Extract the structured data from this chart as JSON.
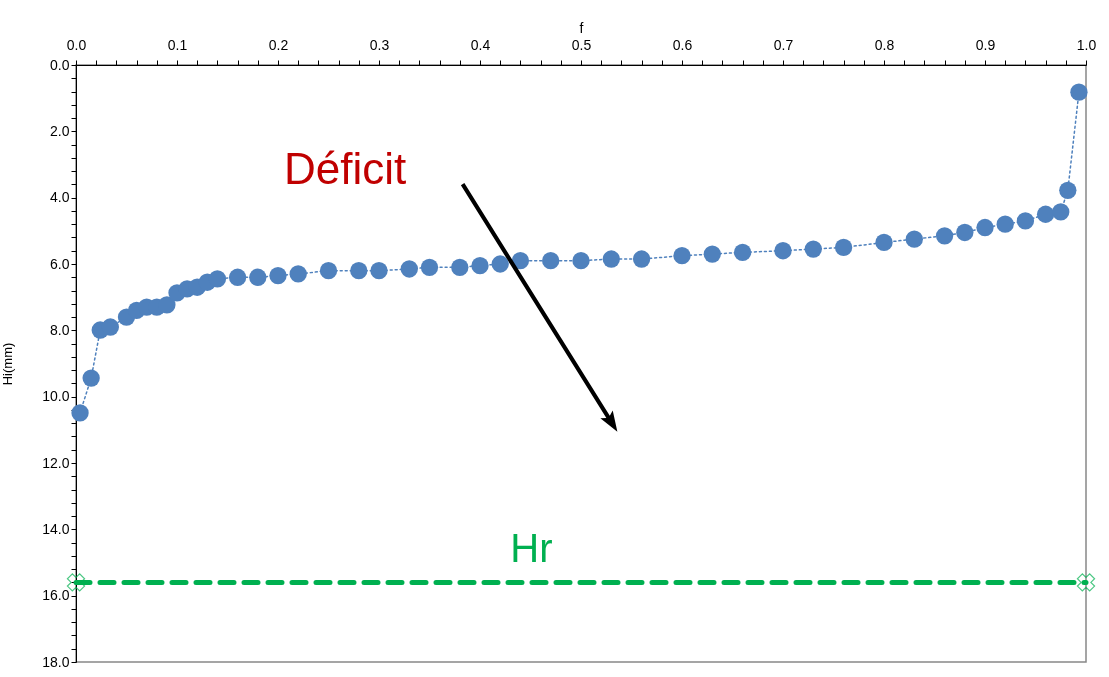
{
  "chart_data": {
    "type": "line",
    "xlabel": "f",
    "ylabel": "Hi(mm)",
    "xlim": [
      0,
      1
    ],
    "ylim": [
      18,
      0
    ],
    "xticks": [
      {
        "value": 0,
        "label": "0.0"
      },
      {
        "value": 0.02,
        "label": null
      },
      {
        "value": 0.04,
        "label": null
      },
      {
        "value": 0.06,
        "label": null
      },
      {
        "value": 0.08,
        "label": null
      },
      {
        "value": 0.1,
        "label": "0.1"
      },
      {
        "value": 0.12,
        "label": null
      },
      {
        "value": 0.14,
        "label": null
      },
      {
        "value": 0.16,
        "label": null
      },
      {
        "value": 0.18,
        "label": null
      },
      {
        "value": 0.2,
        "label": "0.2"
      },
      {
        "value": 0.22,
        "label": null
      },
      {
        "value": 0.24,
        "label": null
      },
      {
        "value": 0.26,
        "label": null
      },
      {
        "value": 0.28,
        "label": null
      },
      {
        "value": 0.3,
        "label": "0.3"
      },
      {
        "value": 0.32,
        "label": null
      },
      {
        "value": 0.34,
        "label": null
      },
      {
        "value": 0.36,
        "label": null
      },
      {
        "value": 0.38,
        "label": null
      },
      {
        "value": 0.4,
        "label": "0.4"
      },
      {
        "value": 0.42,
        "label": null
      },
      {
        "value": 0.44,
        "label": null
      },
      {
        "value": 0.46,
        "label": null
      },
      {
        "value": 0.48,
        "label": null
      },
      {
        "value": 0.5,
        "label": "0.5"
      },
      {
        "value": 0.52,
        "label": null
      },
      {
        "value": 0.54,
        "label": null
      },
      {
        "value": 0.56,
        "label": null
      },
      {
        "value": 0.58,
        "label": null
      },
      {
        "value": 0.6,
        "label": "0.6"
      },
      {
        "value": 0.62,
        "label": null
      },
      {
        "value": 0.64,
        "label": null
      },
      {
        "value": 0.66,
        "label": null
      },
      {
        "value": 0.68,
        "label": null
      },
      {
        "value": 0.7,
        "label": "0.7"
      },
      {
        "value": 0.72,
        "label": null
      },
      {
        "value": 0.74,
        "label": null
      },
      {
        "value": 0.76,
        "label": null
      },
      {
        "value": 0.78,
        "label": null
      },
      {
        "value": 0.8,
        "label": "0.8"
      },
      {
        "value": 0.82,
        "label": null
      },
      {
        "value": 0.84,
        "label": null
      },
      {
        "value": 0.86,
        "label": null
      },
      {
        "value": 0.88,
        "label": null
      },
      {
        "value": 0.9,
        "label": "0.9"
      },
      {
        "value": 0.92,
        "label": null
      },
      {
        "value": 0.94,
        "label": null
      },
      {
        "value": 0.96,
        "label": null
      },
      {
        "value": 0.98,
        "label": null
      },
      {
        "value": 1,
        "label": "1.0"
      }
    ],
    "yticks": [
      {
        "value": 0,
        "label": "0.0"
      },
      {
        "value": 0.4,
        "label": null
      },
      {
        "value": 0.8,
        "label": null
      },
      {
        "value": 1.2,
        "label": null
      },
      {
        "value": 1.6,
        "label": null
      },
      {
        "value": 2,
        "label": "2.0"
      },
      {
        "value": 2.4,
        "label": null
      },
      {
        "value": 2.8,
        "label": null
      },
      {
        "value": 3.2,
        "label": null
      },
      {
        "value": 3.6,
        "label": null
      },
      {
        "value": 4,
        "label": "4.0"
      },
      {
        "value": 4.4,
        "label": null
      },
      {
        "value": 4.8,
        "label": null
      },
      {
        "value": 5.2,
        "label": null
      },
      {
        "value": 5.6,
        "label": null
      },
      {
        "value": 6,
        "label": "6.0"
      },
      {
        "value": 6.4,
        "label": null
      },
      {
        "value": 6.8,
        "label": null
      },
      {
        "value": 7.2,
        "label": null
      },
      {
        "value": 7.6,
        "label": null
      },
      {
        "value": 8,
        "label": "8.0"
      },
      {
        "value": 8.4,
        "label": null
      },
      {
        "value": 8.8,
        "label": null
      },
      {
        "value": 9.2,
        "label": null
      },
      {
        "value": 9.6,
        "label": null
      },
      {
        "value": 10,
        "label": "10.0"
      },
      {
        "value": 10.4,
        "label": null
      },
      {
        "value": 10.8,
        "label": null
      },
      {
        "value": 11.2,
        "label": null
      },
      {
        "value": 11.6,
        "label": null
      },
      {
        "value": 12,
        "label": "12.0"
      },
      {
        "value": 12.4,
        "label": null
      },
      {
        "value": 12.8,
        "label": null
      },
      {
        "value": 13.2,
        "label": null
      },
      {
        "value": 13.6,
        "label": null
      },
      {
        "value": 14,
        "label": "14.0"
      },
      {
        "value": 14.4,
        "label": null
      },
      {
        "value": 14.8,
        "label": null
      },
      {
        "value": 15.2,
        "label": null
      },
      {
        "value": 15.6,
        "label": null
      },
      {
        "value": 16,
        "label": "16.0"
      },
      {
        "value": 16.4,
        "label": null
      },
      {
        "value": 16.8,
        "label": null
      },
      {
        "value": 17.2,
        "label": null
      },
      {
        "value": 17.6,
        "label": null
      },
      {
        "value": 18,
        "label": "18.0"
      }
    ],
    "grid": false,
    "series": [
      {
        "type": "line",
        "color": "#4f81bd",
        "marker": "circle",
        "line_style": "dotted",
        "x": [
          0.004,
          0.015,
          0.024,
          0.034,
          0.05,
          0.06,
          0.07,
          0.08,
          0.09,
          0.1,
          0.11,
          0.12,
          0.13,
          0.14,
          0.16,
          0.18,
          0.2,
          0.22,
          0.25,
          0.28,
          0.3,
          0.33,
          0.35,
          0.38,
          0.4,
          0.42,
          0.44,
          0.47,
          0.5,
          0.53,
          0.56,
          0.6,
          0.63,
          0.66,
          0.7,
          0.73,
          0.76,
          0.8,
          0.83,
          0.86,
          0.88,
          0.9,
          0.92,
          0.94,
          0.96,
          0.975,
          0.982,
          0.993
        ],
        "values": [
          10.49,
          9.44,
          7.99,
          7.9,
          7.6,
          7.4,
          7.3,
          7.3,
          7.23,
          6.87,
          6.75,
          6.7,
          6.55,
          6.45,
          6.4,
          6.4,
          6.35,
          6.3,
          6.2,
          6.2,
          6.2,
          6.15,
          6.1,
          6.1,
          6.05,
          6.0,
          5.9,
          5.9,
          5.9,
          5.85,
          5.85,
          5.75,
          5.7,
          5.65,
          5.6,
          5.55,
          5.5,
          5.35,
          5.25,
          5.15,
          5.05,
          4.9,
          4.8,
          4.7,
          4.5,
          4.43,
          3.78,
          0.82
        ]
      },
      {
        "type": "line",
        "name": "Hr",
        "color": "#00b050",
        "marker": "cross",
        "line_style": "dashed",
        "x": [
          0,
          1
        ],
        "values": [
          15.6,
          15.6
        ]
      }
    ],
    "annotations": [
      "Déficit"
    ]
  }
}
